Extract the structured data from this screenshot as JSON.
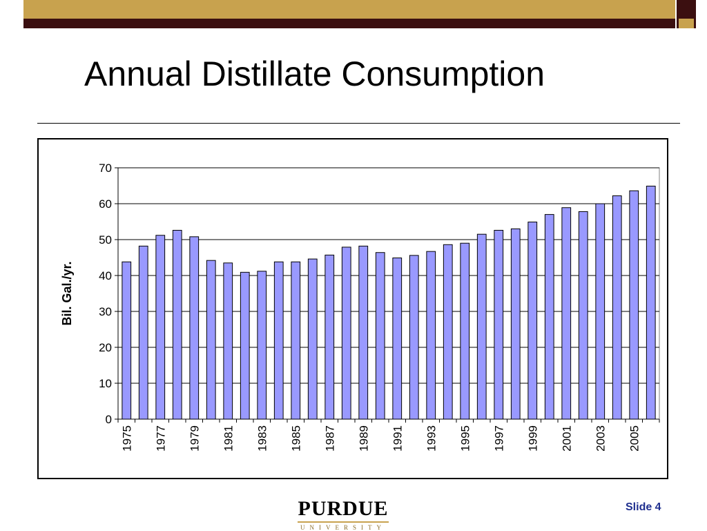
{
  "slide": {
    "title": "Annual Distillate Consumption",
    "slide_number": "Slide 4",
    "logo_text": "PURDUE",
    "logo_subtext": "UNIVERSITY"
  },
  "colors": {
    "band_dark": "#3b0f10",
    "band_gold": "#c8a24e",
    "bar_fill": "#9999ff",
    "slide_number": "#1f2f8f"
  },
  "chart_data": {
    "type": "bar",
    "title": "",
    "xlabel": "",
    "ylabel": "Bil. Gal./yr.",
    "ylim": [
      0,
      70
    ],
    "yticks": [
      0,
      10,
      20,
      30,
      40,
      50,
      60,
      70
    ],
    "grid": true,
    "categories": [
      "1975",
      "1976",
      "1977",
      "1978",
      "1979",
      "1980",
      "1981",
      "1982",
      "1983",
      "1984",
      "1985",
      "1986",
      "1987",
      "1988",
      "1989",
      "1990",
      "1991",
      "1992",
      "1993",
      "1994",
      "1995",
      "1996",
      "1997",
      "1998",
      "1999",
      "2000",
      "2001",
      "2002",
      "2003",
      "2004",
      "2005",
      "2006"
    ],
    "xtick_labels": [
      "1975",
      "1977",
      "1979",
      "1981",
      "1983",
      "1985",
      "1987",
      "1989",
      "1991",
      "1993",
      "1995",
      "1997",
      "1999",
      "2001",
      "2003",
      "2005"
    ],
    "values": [
      43.8,
      48.2,
      51.2,
      52.6,
      50.8,
      44.2,
      43.5,
      40.9,
      41.2,
      43.8,
      43.8,
      44.6,
      45.7,
      47.9,
      48.2,
      46.4,
      44.9,
      45.6,
      46.7,
      48.6,
      49.0,
      51.5,
      52.6,
      53.0,
      54.9,
      57.0,
      58.9,
      57.8,
      60.0,
      62.2,
      63.6,
      64.9
    ]
  }
}
